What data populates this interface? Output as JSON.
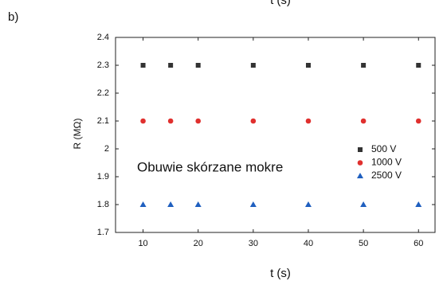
{
  "panel_label": "b)",
  "top_fragment": "t (s)",
  "chart_data": {
    "type": "scatter",
    "xlabel": "t (s)",
    "ylabel": "R (MΩ)",
    "annotation": "Obuwie skórzane mokre",
    "x": [
      10,
      15,
      20,
      30,
      40,
      50,
      60
    ],
    "series": [
      {
        "name": "500 V",
        "color": "#333333",
        "marker": "square",
        "values": [
          2.3,
          2.3,
          2.3,
          2.3,
          2.3,
          2.3,
          2.3
        ]
      },
      {
        "name": "1000 V",
        "color": "#e0302e",
        "marker": "circle",
        "values": [
          2.1,
          2.1,
          2.1,
          2.1,
          2.1,
          2.1,
          2.1
        ]
      },
      {
        "name": "2500 V",
        "color": "#1f5fbf",
        "marker": "triangle",
        "values": [
          1.8,
          1.8,
          1.8,
          1.8,
          1.8,
          1.8,
          1.8
        ]
      }
    ],
    "xlim": [
      5,
      63
    ],
    "xticks": [
      10,
      20,
      30,
      40,
      50,
      60
    ],
    "ylim": [
      1.7,
      2.4
    ],
    "yticks": [
      1.7,
      1.8,
      1.9,
      2,
      2.1,
      2.2,
      2.3,
      2.4
    ],
    "grid": false,
    "legend": "right"
  }
}
